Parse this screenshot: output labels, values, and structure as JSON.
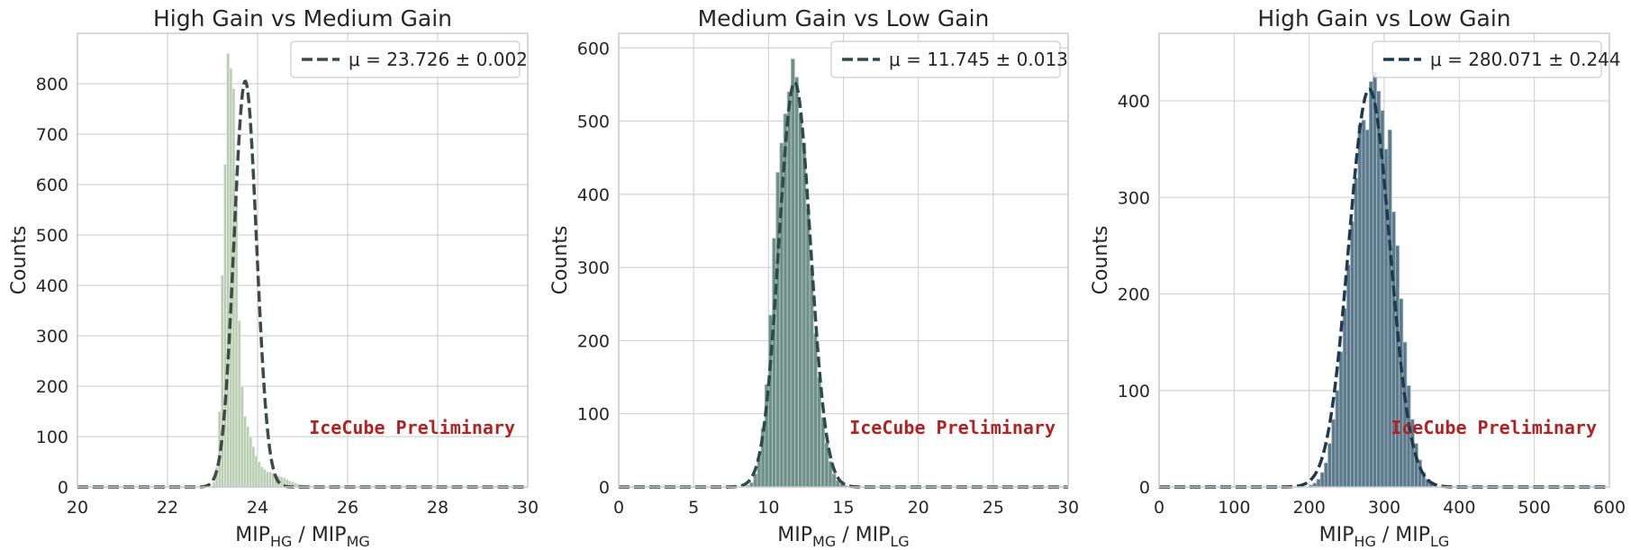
{
  "chart_data": [
    {
      "type": "bar",
      "title": "High Gain vs Medium Gain",
      "xlabel": {
        "main": "MIP",
        "sub1": "HG",
        "sep": " / MIP",
        "sub2": "MG"
      },
      "ylabel": "Counts",
      "xlim": [
        20,
        30
      ],
      "ylim": [
        0,
        900
      ],
      "xticks": [
        20,
        22,
        24,
        26,
        28,
        30
      ],
      "yticks": [
        0,
        100,
        200,
        300,
        400,
        500,
        600,
        700,
        800
      ],
      "grid": true,
      "legend_position": "top-right",
      "legend_label": "μ = 23.726 ± 0.002",
      "annotation": "IceCube Preliminary",
      "hist_color": "#b9cdb2",
      "hist_edge": "#e6eee3",
      "fit_color": "#3f4a42",
      "fit": {
        "mu": 23.726,
        "sigma": 0.25,
        "amplitude": 805
      },
      "bins": {
        "start": 23.0,
        "width": 0.0625
      },
      "counts": [
        10,
        40,
        150,
        420,
        640,
        860,
        830,
        790,
        560,
        330,
        200,
        140,
        120,
        100,
        80,
        62,
        50,
        40,
        35,
        30,
        30,
        28,
        25,
        22,
        20,
        18,
        15,
        12,
        10,
        8,
        6,
        5,
        4,
        3,
        2
      ]
    },
    {
      "type": "bar",
      "title": "Medium Gain vs Low Gain",
      "xlabel": {
        "main": "MIP",
        "sub1": "MG",
        "sep": " / MIP",
        "sub2": "LG"
      },
      "ylabel": "Counts",
      "xlim": [
        0,
        30
      ],
      "ylim": [
        0,
        620
      ],
      "xticks": [
        0,
        5,
        10,
        15,
        20,
        25,
        30
      ],
      "yticks": [
        0,
        100,
        200,
        300,
        400,
        500,
        600
      ],
      "grid": true,
      "legend_position": "top-right",
      "legend_label": "μ = 11.745 ± 0.013",
      "annotation": "IceCube Preliminary",
      "hist_color": "#6f8f89",
      "hist_edge": "#b7c9c5",
      "fit_color": "#2d4b47",
      "fit": {
        "mu": 11.745,
        "sigma": 1.05,
        "amplitude": 553
      },
      "bins": {
        "start": 8.5,
        "width": 0.25
      },
      "counts": [
        2,
        6,
        18,
        40,
        80,
        140,
        235,
        340,
        430,
        470,
        510,
        540,
        585,
        560,
        510,
        470,
        380,
        300,
        210,
        150,
        95,
        60,
        35,
        18,
        9,
        4,
        2
      ]
    },
    {
      "type": "bar",
      "title": "High Gain vs Low Gain",
      "xlabel": {
        "main": "MIP",
        "sub1": "HG",
        "sep": " / MIP",
        "sub2": "LG"
      },
      "ylabel": "Counts",
      "xlim": [
        0,
        600
      ],
      "ylim": [
        0,
        470
      ],
      "xticks": [
        0,
        100,
        200,
        300,
        400,
        500,
        600
      ],
      "yticks": [
        0,
        100,
        200,
        300,
        400
      ],
      "grid": true,
      "legend_position": "top-right",
      "legend_label": "μ = 280.071 ± 0.244",
      "annotation": "IceCube Preliminary",
      "hist_color": "#5d7a8c",
      "hist_edge": "#a9bbc6",
      "fit_color": "#1f3a4f",
      "fit": {
        "mu": 280.071,
        "sigma": 27.5,
        "amplitude": 412
      },
      "bins": {
        "start": 200,
        "width": 5
      },
      "counts": [
        2,
        4,
        8,
        15,
        25,
        45,
        70,
        100,
        140,
        185,
        230,
        275,
        320,
        375,
        380,
        370,
        420,
        430,
        410,
        390,
        350,
        370,
        285,
        250,
        195,
        150,
        105,
        70,
        45,
        28,
        15,
        8,
        4,
        2
      ]
    }
  ]
}
